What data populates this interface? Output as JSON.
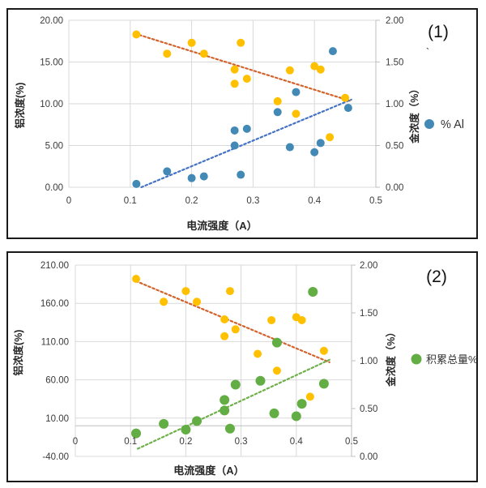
{
  "theme": {
    "grid_color": "#D9D9D9",
    "axis_line_color": "#BFBFBF",
    "tick_text_color": "#3A3A3A",
    "title_text_color": "#262626",
    "panel_border_color": "#1A1A1A",
    "background": "#FFFFFF"
  },
  "chart_data": [
    {
      "type": "scatter",
      "panel_label": "(1)",
      "decorative_mark": "ˋ",
      "xlabel": "电流强度（A）",
      "ylabel_left": "铝浓度(%)",
      "ylabel_right": "金浓度（%）",
      "xlim": [
        0,
        0.5
      ],
      "xticks": {
        "values": [
          0,
          0.1,
          0.2,
          0.3,
          0.4,
          0.5
        ],
        "labels": [
          "0",
          "0.1",
          "0.2",
          "0.3",
          "0.4",
          "0.5"
        ]
      },
      "ylim_left": [
        0,
        20
      ],
      "yticks_left": {
        "values": [
          0,
          5,
          10,
          15,
          20
        ],
        "labels": [
          "0.00",
          "5.00",
          "10.00",
          "15.00",
          "20.00"
        ]
      },
      "ylim_right": [
        0,
        2
      ],
      "yticks_right": {
        "values": [
          0,
          0.5,
          1,
          1.5,
          2
        ],
        "labels": [
          "0.00",
          "0.50",
          "1.00",
          "1.50",
          "2.00"
        ]
      },
      "grid": true,
      "legend": {
        "label": "% Al",
        "color": "#4389B5",
        "position": "right-middle"
      },
      "series": [
        {
          "name": "铝浓度",
          "axis": "left",
          "color": "#FFC000",
          "marker": "circle",
          "points": [
            [
              0.11,
              18.3
            ],
            [
              0.16,
              16.0
            ],
            [
              0.2,
              17.3
            ],
            [
              0.22,
              16.0
            ],
            [
              0.27,
              14.1
            ],
            [
              0.27,
              12.4
            ],
            [
              0.28,
              17.3
            ],
            [
              0.29,
              13.0
            ],
            [
              0.34,
              10.3
            ],
            [
              0.36,
              14.0
            ],
            [
              0.37,
              8.8
            ],
            [
              0.4,
              14.5
            ],
            [
              0.41,
              14.1
            ],
            [
              0.425,
              6.0
            ],
            [
              0.45,
              10.7
            ]
          ]
        },
        {
          "name": "% Al",
          "axis": "right",
          "color": "#4389B5",
          "marker": "circle",
          "points": [
            [
              0.11,
              0.04
            ],
            [
              0.16,
              0.19
            ],
            [
              0.2,
              0.11
            ],
            [
              0.22,
              0.13
            ],
            [
              0.27,
              0.5
            ],
            [
              0.27,
              0.68
            ],
            [
              0.28,
              0.15
            ],
            [
              0.29,
              0.7
            ],
            [
              0.34,
              0.9
            ],
            [
              0.36,
              0.48
            ],
            [
              0.37,
              1.14
            ],
            [
              0.4,
              0.42
            ],
            [
              0.41,
              0.53
            ],
            [
              0.43,
              1.63
            ],
            [
              0.455,
              0.95
            ]
          ]
        }
      ],
      "trendlines": [
        {
          "series": "铝浓度",
          "axis": "left",
          "color": "#D4622B",
          "style": "dotted",
          "from": [
            0.108,
            18.4
          ],
          "to": [
            0.458,
            10.35
          ]
        },
        {
          "series": "% Al",
          "axis": "right",
          "color": "#4472C4",
          "style": "dotted",
          "from": [
            0.118,
            0.0
          ],
          "to": [
            0.46,
            1.05
          ]
        }
      ]
    },
    {
      "type": "scatter",
      "panel_label": "(2)",
      "decorative_mark": null,
      "xlabel": "电流强度（A）",
      "ylabel_left": "铝浓度(%)",
      "ylabel_right": "金浓度（%）",
      "xlim": [
        0,
        0.5
      ],
      "xticks": {
        "values": [
          0,
          0.1,
          0.2,
          0.3,
          0.4,
          0.5
        ],
        "labels": [
          "0",
          "0.1",
          "0.2",
          "0.3",
          "0.4",
          "0.5"
        ]
      },
      "ylim_left": [
        -40,
        210
      ],
      "yticks_left": {
        "values": [
          -40,
          10,
          60,
          110,
          160,
          210
        ],
        "labels": [
          "-40.00",
          "10.00",
          "60.00",
          "110.00",
          "160.00",
          "210.00"
        ]
      },
      "ylim_right": [
        0,
        2
      ],
      "yticks_right": {
        "values": [
          0,
          0.5,
          1,
          1.5,
          2
        ],
        "labels": [
          "0.00",
          "0.50",
          "1.00",
          "1.50",
          "2.00"
        ]
      },
      "x_axis_crosses_at": 0,
      "grid": true,
      "legend": {
        "label": "积累总量%",
        "color": "#63AD45",
        "position": "right-middle"
      },
      "series": [
        {
          "name": "铝浓度",
          "axis": "left",
          "color": "#FFC000",
          "marker": "circle",
          "points": [
            [
              0.11,
              192
            ],
            [
              0.16,
              162
            ],
            [
              0.2,
              176
            ],
            [
              0.22,
              162
            ],
            [
              0.27,
              139
            ],
            [
              0.27,
              117
            ],
            [
              0.28,
              176
            ],
            [
              0.29,
              126
            ],
            [
              0.33,
              94
            ],
            [
              0.355,
              138
            ],
            [
              0.365,
              72
            ],
            [
              0.4,
              142
            ],
            [
              0.41,
              138
            ],
            [
              0.425,
              38
            ],
            [
              0.45,
              98
            ]
          ]
        },
        {
          "name": "积累总量%",
          "axis": "right",
          "color": "#63AD45",
          "marker": "circle",
          "points": [
            [
              0.11,
              0.24
            ],
            [
              0.16,
              0.34
            ],
            [
              0.2,
              0.28
            ],
            [
              0.22,
              0.37
            ],
            [
              0.27,
              0.48
            ],
            [
              0.27,
              0.59
            ],
            [
              0.28,
              0.29
            ],
            [
              0.29,
              0.75
            ],
            [
              0.335,
              0.79
            ],
            [
              0.36,
              0.45
            ],
            [
              0.365,
              1.19
            ],
            [
              0.4,
              0.42
            ],
            [
              0.41,
              0.55
            ],
            [
              0.43,
              1.72
            ],
            [
              0.45,
              0.76
            ]
          ]
        }
      ],
      "trendlines": [
        {
          "series": "铝浓度",
          "axis": "left",
          "color": "#D4622B",
          "style": "dotted",
          "from": [
            0.11,
            189
          ],
          "to": [
            0.46,
            83
          ]
        },
        {
          "series": "积累总量%",
          "axis": "right",
          "color": "#6FB04C",
          "style": "dotted",
          "from": [
            0.113,
            0.08
          ],
          "to": [
            0.46,
            1.01
          ]
        }
      ]
    }
  ]
}
